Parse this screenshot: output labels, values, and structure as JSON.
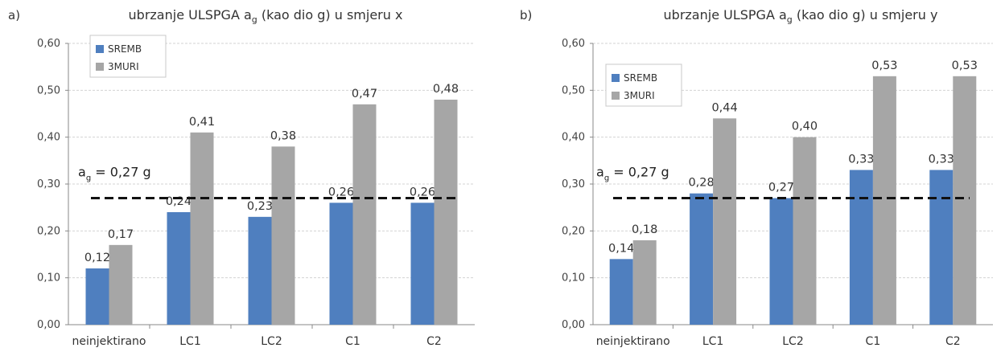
{
  "colors": {
    "SREMB": "#4f7fbf",
    "3MURI": "#a6a6a6",
    "grid": "#d3d3d3",
    "reference": "#111111"
  },
  "chart_data": [
    {
      "panel_label": "a)",
      "type": "bar",
      "title": "ubrzanje ULSPGA ag (kao dio g) u smjeru x",
      "title_parts": {
        "pre": "ubrzanje ULSPGA a",
        "sub": "g",
        "post": " (kao dio g) u smjeru x"
      },
      "categories": [
        "neinjektirano",
        "LC1",
        "LC2",
        "C1",
        "C2"
      ],
      "series": [
        {
          "name": "SREMB",
          "values": [
            0.12,
            0.24,
            0.23,
            0.26,
            0.26
          ],
          "labels": [
            "0,12",
            "0,24",
            "0,23",
            "0,26",
            "0,26"
          ]
        },
        {
          "name": "3MURI",
          "values": [
            0.17,
            0.41,
            0.38,
            0.47,
            0.48
          ],
          "labels": [
            "0,17",
            "0,41",
            "0,38",
            "0,47",
            "0,48"
          ]
        }
      ],
      "ylim": [
        0,
        0.6
      ],
      "yticks": [
        "0,00",
        "0,10",
        "0,20",
        "0,30",
        "0,40",
        "0,50",
        "0,60"
      ],
      "grid": true,
      "legend": "top-left",
      "reference_line": {
        "value": 0.27,
        "label_pre": "a",
        "label_sub": "g",
        "label_post": " = 0,27 g",
        "style": "dashed"
      }
    },
    {
      "panel_label": "b)",
      "type": "bar",
      "title": "ubrzanje ULSPGA ag (kao dio g) u smjeru y",
      "title_parts": {
        "pre": "ubrzanje ULSPGA a",
        "sub": "g",
        "post": " (kao dio g) u smjeru y"
      },
      "categories": [
        "neinjektirano",
        "LC1",
        "LC2",
        "C1",
        "C2"
      ],
      "series": [
        {
          "name": "SREMB",
          "values": [
            0.14,
            0.28,
            0.27,
            0.33,
            0.33
          ],
          "labels": [
            "0,14",
            "0,28",
            "0,27",
            "0,33",
            "0,33"
          ]
        },
        {
          "name": "3MURI",
          "values": [
            0.18,
            0.44,
            0.4,
            0.53,
            0.53
          ],
          "labels": [
            "0,18",
            "0,44",
            "0,40",
            "0,53",
            "0,53"
          ]
        }
      ],
      "ylim": [
        0,
        0.6
      ],
      "yticks": [
        "0,00",
        "0,10",
        "0,20",
        "0,30",
        "0,40",
        "0,50",
        "0,60"
      ],
      "grid": true,
      "legend": "top-left",
      "reference_line": {
        "value": 0.27,
        "label_pre": "a",
        "label_sub": "g",
        "label_post": " = 0,27 g",
        "style": "dashed"
      }
    }
  ]
}
